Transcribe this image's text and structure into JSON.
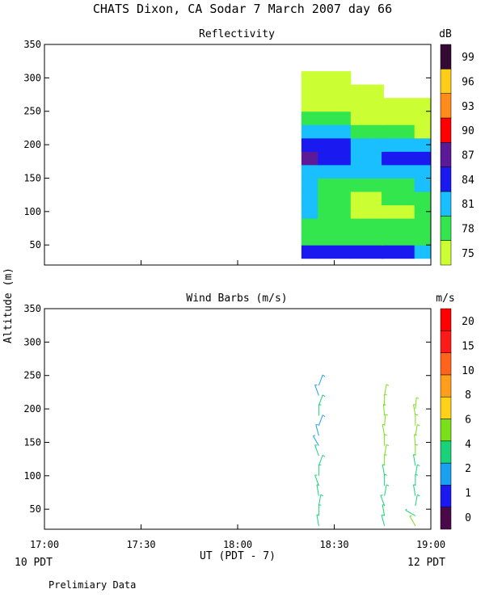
{
  "title": "CHATS Dixon, CA  Sodar   7 March 2007  day  66",
  "footer_note": "Prelimiary Data",
  "y_axis_label": "Altitude (m)",
  "chart_data": [
    {
      "id": "reflectivity",
      "type": "heatmap",
      "title": "Reflectivity",
      "ylim": [
        20,
        350
      ],
      "yticks": [
        50,
        100,
        150,
        200,
        250,
        300,
        350
      ],
      "colorbar": {
        "unit": "dB",
        "labels": [
          "75",
          "78",
          "81",
          "84",
          "87",
          "90",
          "93",
          "96",
          "99"
        ],
        "colors": [
          "#ccff33",
          "#33e64d",
          "#1abfff",
          "#1a1af0",
          "#5c1a99",
          "#ff0000",
          "#ff8c1a",
          "#ffcc1a",
          "#330a33"
        ]
      },
      "x_hours_utc": [
        18.33,
        18.5,
        18.67,
        18.83,
        19.0
      ],
      "altitudes": [
        40,
        60,
        80,
        100,
        120,
        140,
        160,
        180,
        200,
        220,
        240,
        260,
        280,
        300
      ],
      "values_db": [
        [
          84,
          84,
          84,
          84,
          81
        ],
        [
          79,
          78,
          78,
          78,
          78
        ],
        [
          79,
          78,
          77,
          77,
          78
        ],
        [
          80,
          78,
          75,
          76,
          78
        ],
        [
          80,
          78,
          75,
          78,
          79
        ],
        [
          81,
          79,
          78,
          79,
          80
        ],
        [
          82,
          81,
          80,
          81,
          82
        ],
        [
          86,
          84,
          82,
          84,
          85
        ],
        [
          84,
          83,
          82,
          82,
          82
        ],
        [
          81,
          80,
          79,
          77,
          76
        ],
        [
          78,
          77,
          76,
          76,
          75
        ],
        [
          76,
          76,
          75,
          75,
          75
        ],
        [
          75,
          75,
          75,
          null,
          null
        ],
        [
          75,
          75,
          null,
          null,
          null
        ]
      ]
    },
    {
      "id": "wind-barbs",
      "type": "scatter",
      "title": "Wind Barbs (m/s)",
      "ylim": [
        20,
        350
      ],
      "yticks": [
        50,
        100,
        150,
        200,
        250,
        300,
        350
      ],
      "colorbar": {
        "unit": "m/s",
        "labels": [
          "0",
          "1",
          "2",
          "4",
          "6",
          "8",
          "10",
          "15",
          "20"
        ],
        "colors": [
          "#4a0a4a",
          "#1a1af0",
          "#1aa0f0",
          "#1ad27a",
          "#7ae01a",
          "#ffd21a",
          "#ff9e1a",
          "#ff641a",
          "#ff1a1a",
          "#ff0000"
        ]
      },
      "x_ticks": [
        "17:00",
        "17:30",
        "18:00",
        "18:30",
        "19:00"
      ],
      "x_label": "UT  (PDT - 7)",
      "x_sub_left": "10 PDT",
      "x_sub_right": "12 PDT",
      "xlim_hours": [
        17.0,
        19.0
      ],
      "profiles": [
        {
          "x_hour": 18.42,
          "points": [
            {
              "alt": 25,
              "speed": 4,
              "dir": 350
            },
            {
              "alt": 40,
              "speed": 4,
              "dir": 0
            },
            {
              "alt": 55,
              "speed": 4,
              "dir": 10
            },
            {
              "alt": 70,
              "speed": 4,
              "dir": 350
            },
            {
              "alt": 85,
              "speed": 4,
              "dir": 340
            },
            {
              "alt": 100,
              "speed": 4,
              "dir": 0
            },
            {
              "alt": 115,
              "speed": 4,
              "dir": 20
            },
            {
              "alt": 130,
              "speed": 4,
              "dir": 340
            },
            {
              "alt": 145,
              "speed": 3,
              "dir": 330
            },
            {
              "alt": 160,
              "speed": 2,
              "dir": 345
            },
            {
              "alt": 175,
              "speed": 3,
              "dir": 20
            },
            {
              "alt": 190,
              "speed": 5,
              "dir": 0
            },
            {
              "alt": 205,
              "speed": 5,
              "dir": 20
            },
            {
              "alt": 220,
              "speed": 3,
              "dir": 340
            },
            {
              "alt": 235,
              "speed": 3,
              "dir": 20
            }
          ]
        },
        {
          "x_hour": 18.76,
          "points": [
            {
              "alt": 25,
              "speed": 5,
              "dir": 345
            },
            {
              "alt": 40,
              "speed": 5,
              "dir": 350
            },
            {
              "alt": 55,
              "speed": 4,
              "dir": 340
            },
            {
              "alt": 70,
              "speed": 5,
              "dir": 10
            },
            {
              "alt": 85,
              "speed": 5,
              "dir": 0
            },
            {
              "alt": 100,
              "speed": 5,
              "dir": 350
            },
            {
              "alt": 115,
              "speed": 6,
              "dir": 0
            },
            {
              "alt": 130,
              "speed": 6,
              "dir": 10
            },
            {
              "alt": 145,
              "speed": 6,
              "dir": 0
            },
            {
              "alt": 160,
              "speed": 6,
              "dir": 350
            },
            {
              "alt": 175,
              "speed": 6,
              "dir": 5
            },
            {
              "alt": 190,
              "speed": 6,
              "dir": 355
            },
            {
              "alt": 205,
              "speed": 6,
              "dir": 0
            },
            {
              "alt": 220,
              "speed": 6,
              "dir": 10
            }
          ]
        },
        {
          "x_hour": 18.92,
          "points": [
            {
              "alt": 25,
              "speed": 7,
              "dir": 330
            },
            {
              "alt": 40,
              "speed": 5,
              "dir": 300
            },
            {
              "alt": 55,
              "speed": 5,
              "dir": 10
            },
            {
              "alt": 70,
              "speed": 5,
              "dir": 350
            },
            {
              "alt": 85,
              "speed": 5,
              "dir": 0
            },
            {
              "alt": 100,
              "speed": 5,
              "dir": 10
            },
            {
              "alt": 115,
              "speed": 5,
              "dir": 350
            },
            {
              "alt": 130,
              "speed": 6,
              "dir": 0
            },
            {
              "alt": 145,
              "speed": 6,
              "dir": 355
            },
            {
              "alt": 160,
              "speed": 6,
              "dir": 10
            },
            {
              "alt": 175,
              "speed": 6,
              "dir": 0
            },
            {
              "alt": 190,
              "speed": 6,
              "dir": 350
            },
            {
              "alt": 200,
              "speed": 6,
              "dir": 5
            }
          ]
        }
      ]
    }
  ]
}
